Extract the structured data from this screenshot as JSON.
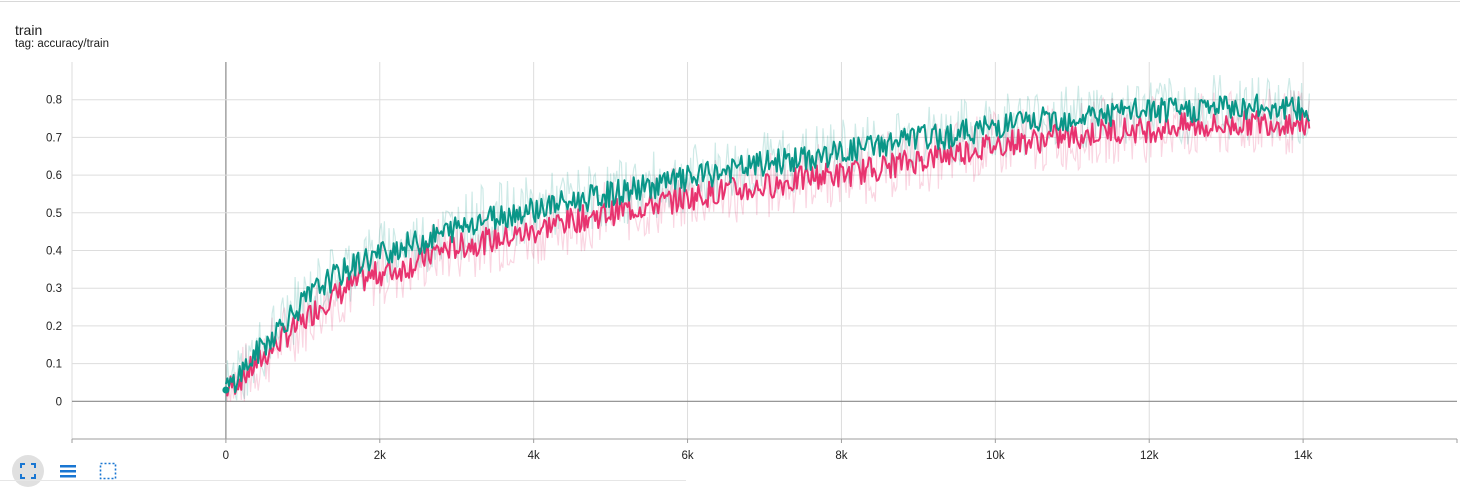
{
  "card": {
    "title": "train",
    "tag": "tag: accuracy/train"
  },
  "toolbar": {
    "buttons": [
      "fit-domain-icon",
      "toggle-log-scale-icon",
      "download-icon"
    ]
  },
  "colors": {
    "series_pink": "#e8336f",
    "series_teal": "#0a9688",
    "grid": "#dddddd",
    "axis": "#9e9e9e",
    "toolbar_icon": "#1976d2"
  },
  "chart_data": {
    "type": "line",
    "title": "train",
    "subtitle": "tag: accuracy/train",
    "xlabel": "",
    "ylabel": "",
    "xlim": [
      -2000,
      16000
    ],
    "ylim": [
      -0.1,
      0.9
    ],
    "xticks": [
      0,
      2000,
      4000,
      6000,
      8000,
      10000,
      12000,
      14000
    ],
    "xtick_labels": [
      "0",
      "2k",
      "4k",
      "6k",
      "8k",
      "10k",
      "12k",
      "14k"
    ],
    "yticks": [
      0,
      0.1,
      0.2,
      0.3,
      0.4,
      0.5,
      0.6,
      0.7,
      0.8
    ],
    "ytick_labels": [
      "0",
      "0.1",
      "0.2",
      "0.3",
      "0.4",
      "0.5",
      "0.6",
      "0.7",
      "0.8"
    ],
    "grid": true,
    "legend": "none",
    "series": [
      {
        "color": "#e8336f",
        "smoothed": [
          [
            0,
            0.03
          ],
          [
            250,
            0.07
          ],
          [
            500,
            0.12
          ],
          [
            750,
            0.17
          ],
          [
            1000,
            0.21
          ],
          [
            1250,
            0.26
          ],
          [
            1500,
            0.29
          ],
          [
            1750,
            0.32
          ],
          [
            2000,
            0.34
          ],
          [
            2250,
            0.35
          ],
          [
            2500,
            0.37
          ],
          [
            2750,
            0.4
          ],
          [
            3000,
            0.41
          ],
          [
            3250,
            0.42
          ],
          [
            3500,
            0.43
          ],
          [
            3750,
            0.44
          ],
          [
            4000,
            0.45
          ],
          [
            4250,
            0.47
          ],
          [
            4500,
            0.48
          ],
          [
            4750,
            0.49
          ],
          [
            5000,
            0.5
          ],
          [
            5250,
            0.51
          ],
          [
            5500,
            0.52
          ],
          [
            5750,
            0.53
          ],
          [
            6000,
            0.54
          ],
          [
            6250,
            0.55
          ],
          [
            6500,
            0.56
          ],
          [
            6750,
            0.56
          ],
          [
            7000,
            0.57
          ],
          [
            7250,
            0.58
          ],
          [
            7500,
            0.59
          ],
          [
            7750,
            0.6
          ],
          [
            8000,
            0.6
          ],
          [
            8250,
            0.61
          ],
          [
            8500,
            0.62
          ],
          [
            8750,
            0.63
          ],
          [
            9000,
            0.64
          ],
          [
            9250,
            0.65
          ],
          [
            9500,
            0.66
          ],
          [
            9750,
            0.67
          ],
          [
            10000,
            0.68
          ],
          [
            10250,
            0.69
          ],
          [
            10500,
            0.69
          ],
          [
            10750,
            0.7
          ],
          [
            11000,
            0.7
          ],
          [
            11250,
            0.71
          ],
          [
            11500,
            0.72
          ],
          [
            11750,
            0.72
          ],
          [
            12000,
            0.72
          ],
          [
            12250,
            0.73
          ],
          [
            12500,
            0.73
          ],
          [
            12750,
            0.73
          ],
          [
            13000,
            0.73
          ],
          [
            13250,
            0.74
          ],
          [
            13500,
            0.74
          ],
          [
            13750,
            0.74
          ],
          [
            14000,
            0.74
          ],
          [
            14080,
            0.73
          ]
        ],
        "noise": 0.035,
        "raw_noise": 0.09
      },
      {
        "color": "#0a9688",
        "smoothed": [
          [
            0,
            0.03
          ],
          [
            250,
            0.09
          ],
          [
            500,
            0.15
          ],
          [
            750,
            0.21
          ],
          [
            1000,
            0.26
          ],
          [
            1250,
            0.31
          ],
          [
            1500,
            0.34
          ],
          [
            1750,
            0.37
          ],
          [
            2000,
            0.39
          ],
          [
            2250,
            0.41
          ],
          [
            2500,
            0.42
          ],
          [
            2750,
            0.44
          ],
          [
            3000,
            0.46
          ],
          [
            3250,
            0.48
          ],
          [
            3500,
            0.49
          ],
          [
            3750,
            0.5
          ],
          [
            4000,
            0.51
          ],
          [
            4250,
            0.52
          ],
          [
            4500,
            0.53
          ],
          [
            4750,
            0.54
          ],
          [
            5000,
            0.55
          ],
          [
            5250,
            0.56
          ],
          [
            5500,
            0.57
          ],
          [
            5750,
            0.58
          ],
          [
            6000,
            0.59
          ],
          [
            6250,
            0.6
          ],
          [
            6500,
            0.61
          ],
          [
            6750,
            0.62
          ],
          [
            7000,
            0.63
          ],
          [
            7250,
            0.64
          ],
          [
            7500,
            0.64
          ],
          [
            7750,
            0.65
          ],
          [
            8000,
            0.66
          ],
          [
            8250,
            0.67
          ],
          [
            8500,
            0.68
          ],
          [
            8750,
            0.69
          ],
          [
            9000,
            0.7
          ],
          [
            9250,
            0.7
          ],
          [
            9500,
            0.71
          ],
          [
            9750,
            0.72
          ],
          [
            10000,
            0.73
          ],
          [
            10250,
            0.74
          ],
          [
            10500,
            0.74
          ],
          [
            10750,
            0.75
          ],
          [
            11000,
            0.75
          ],
          [
            11250,
            0.76
          ],
          [
            11500,
            0.76
          ],
          [
            11750,
            0.77
          ],
          [
            12000,
            0.77
          ],
          [
            12250,
            0.77
          ],
          [
            12500,
            0.77
          ],
          [
            12750,
            0.78
          ],
          [
            13000,
            0.78
          ],
          [
            13250,
            0.78
          ],
          [
            13500,
            0.78
          ],
          [
            13750,
            0.78
          ],
          [
            14000,
            0.77
          ],
          [
            14080,
            0.76
          ]
        ],
        "noise": 0.035,
        "raw_noise": 0.09
      }
    ]
  }
}
